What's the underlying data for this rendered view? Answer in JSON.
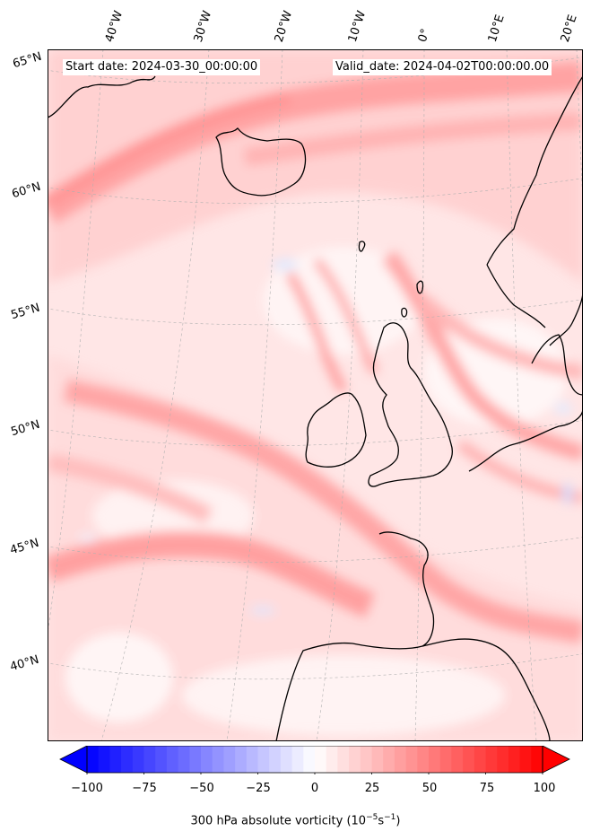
{
  "header": {
    "start_date": "Start date: 2024-03-30_00:00:00",
    "valid_date": "Valid_date: 2024-04-02T00:00:00.00"
  },
  "longitude_labels": [
    "40°W",
    "30°W",
    "20°W",
    "10°W",
    "0°",
    "10°E",
    "20°E"
  ],
  "latitude_labels": [
    "65°N",
    "60°N",
    "55°N",
    "50°N",
    "45°N",
    "40°N"
  ],
  "colorbar": {
    "ticks": [
      "−100",
      "−75",
      "−50",
      "−25",
      "0",
      "25",
      "50",
      "75",
      "100"
    ],
    "title_prefix": "300 hPa absolute vorticity (10",
    "title_exp1": "−5",
    "title_mid": "s",
    "title_exp2": "−1",
    "title_suffix": ")",
    "min": -100,
    "max": 100,
    "colormap": "bwr",
    "extend": "both"
  },
  "colors": {
    "coast": "#000000",
    "grid": "#b0b0b0",
    "strong_pos": "#ff8080",
    "weak_pos": "#ffd6d6",
    "neg": "#dde8ff"
  }
}
